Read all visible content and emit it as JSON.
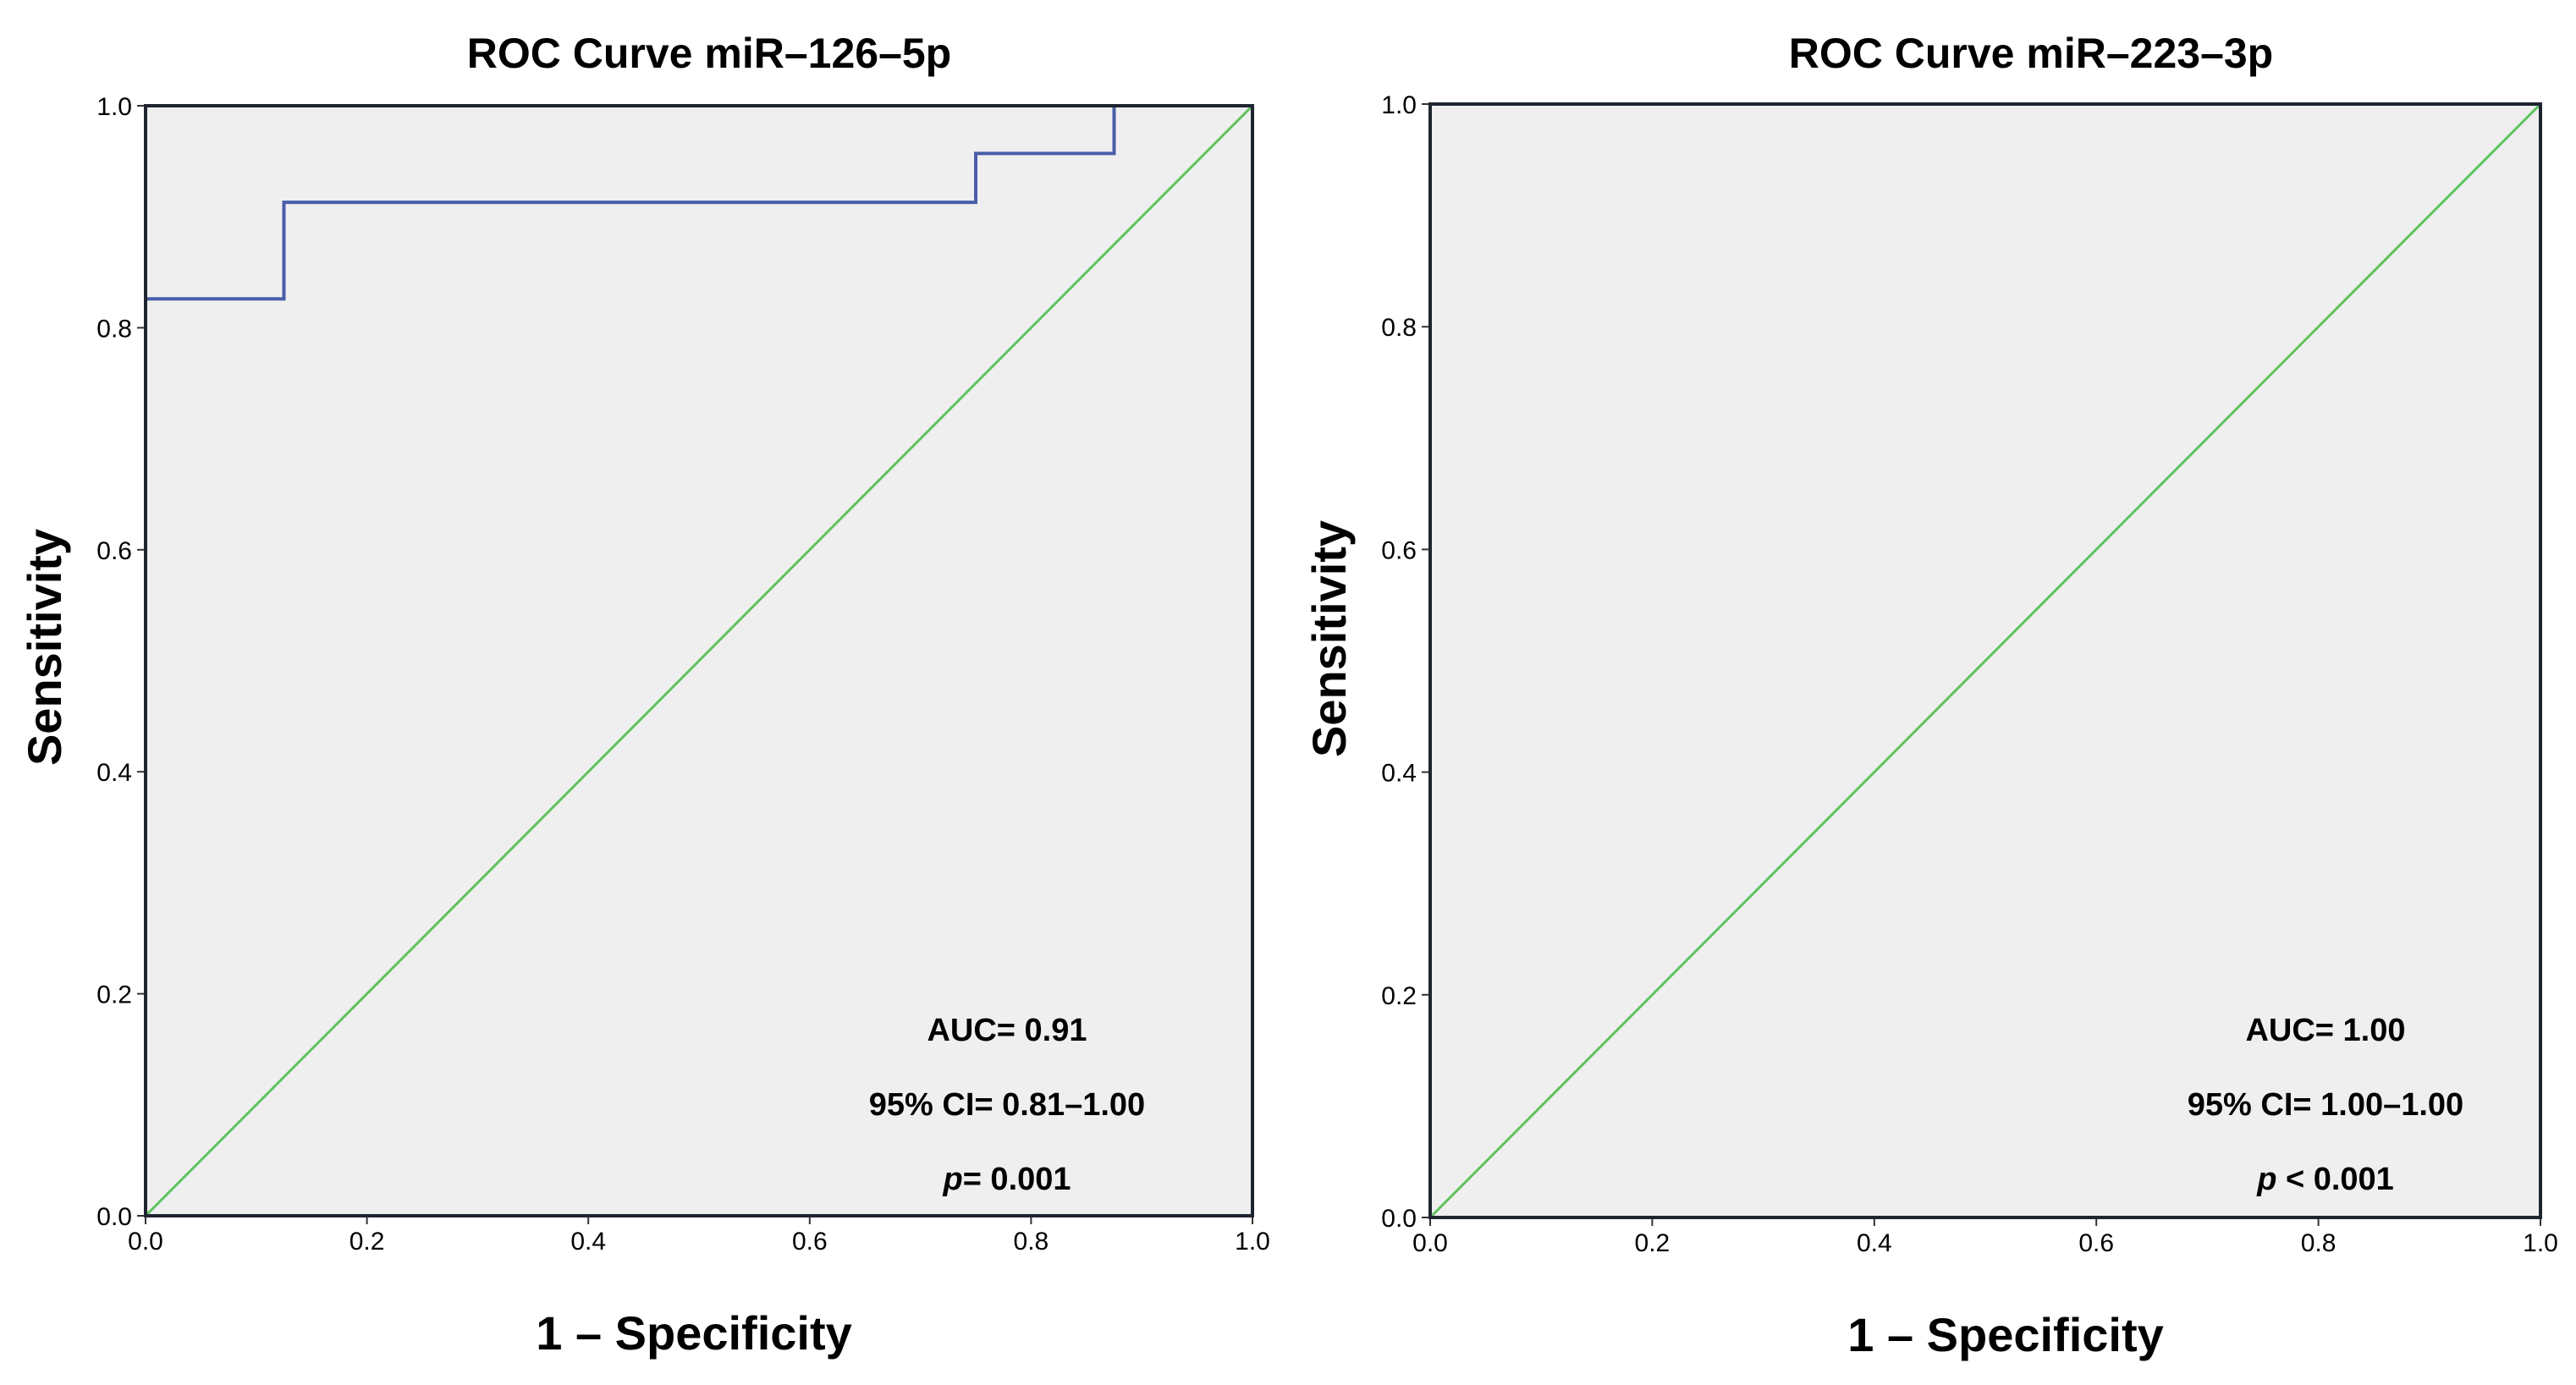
{
  "colors": {
    "plot_background": "#efefef",
    "frame": "#1f2530",
    "roc_line": "#4a5ea8",
    "reference_line": "#5ec35e"
  },
  "chart_data": [
    {
      "type": "line",
      "title": "ROC Curve miR–126–5p",
      "xlabel": "1 – Specificity",
      "ylabel": "Sensitivity",
      "xlim": [
        0,
        1
      ],
      "ylim": [
        0,
        1
      ],
      "x_ticks": [
        "0.0",
        "0.2",
        "0.4",
        "0.6",
        "0.8",
        "1.0"
      ],
      "y_ticks": [
        "0.0",
        "0.2",
        "0.4",
        "0.6",
        "0.8",
        "1.0"
      ],
      "series": [
        {
          "name": "ROC",
          "x": [
            0,
            0,
            0.125,
            0.125,
            0.75,
            0.75,
            0.875,
            0.875,
            1.0
          ],
          "y": [
            0,
            0.826,
            0.826,
            0.913,
            0.913,
            0.957,
            0.957,
            1.0,
            1.0
          ]
        },
        {
          "name": "Reference line",
          "x": [
            0,
            1
          ],
          "y": [
            0,
            1
          ]
        }
      ],
      "annotations": {
        "auc": "AUC= 0.91",
        "ci": "95% CI= 0.81–1.00",
        "p_symbol": "p",
        "p_value": "= 0.001"
      }
    },
    {
      "type": "line",
      "title": "ROC Curve miR–223–3p",
      "xlabel": "1 – Specificity",
      "ylabel": "Sensitivity",
      "xlim": [
        0,
        1
      ],
      "ylim": [
        0,
        1
      ],
      "x_ticks": [
        "0.0",
        "0.2",
        "0.4",
        "0.6",
        "0.8",
        "1.0"
      ],
      "y_ticks": [
        "0.0",
        "0.2",
        "0.4",
        "0.6",
        "0.8",
        "1.0"
      ],
      "series": [
        {
          "name": "ROC",
          "x": [
            0,
            0,
            1.0
          ],
          "y": [
            0,
            1.0,
            1.0
          ]
        },
        {
          "name": "Reference line",
          "x": [
            0,
            1
          ],
          "y": [
            0,
            1
          ]
        }
      ],
      "annotations": {
        "auc": "AUC= 1.00",
        "ci": "95% CI= 1.00–1.00",
        "p_symbol": "p",
        "p_value": " < 0.001"
      }
    }
  ]
}
